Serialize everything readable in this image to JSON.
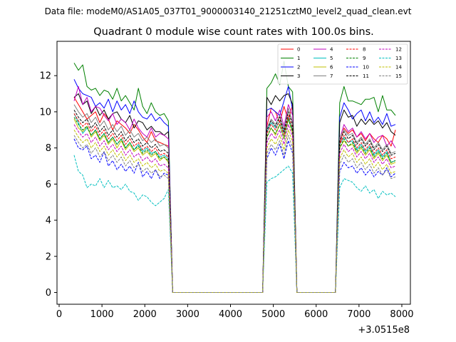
{
  "figure": {
    "supertitle": "Data file: modeM0/AS1A05_037T01_9000003140_21251cztM0_level2_quad_clean.evt"
  },
  "chart_data": {
    "type": "line",
    "title": "Quadrant 0 module wise count rates with 100.0s bins.",
    "xlabel": "",
    "ylabel": "",
    "x_offset_label": "+3.0515e8",
    "xlim": [
      -50,
      8200
    ],
    "ylim": [
      -0.65,
      13.9
    ],
    "xticks": [
      0,
      1000,
      2000,
      3000,
      4000,
      5000,
      6000,
      7000,
      8000
    ],
    "xtick_labels": [
      "0",
      "1000",
      "2000",
      "3000",
      "4000",
      "5000",
      "6000",
      "7000",
      "8000"
    ],
    "yticks": [
      0,
      2,
      4,
      6,
      8,
      10,
      12
    ],
    "ytick_labels": [
      "0",
      "2",
      "4",
      "6",
      "8",
      "10",
      "12"
    ],
    "grid": false,
    "legend_position": "top-right",
    "legend_columns": 4,
    "segments": [
      {
        "x_start": 350,
        "x_end": 2550
      },
      {
        "x_start": 4850,
        "x_end": 5450
      },
      {
        "x_start": 6550,
        "x_end": 7850
      }
    ],
    "series": [
      {
        "name": "0",
        "color": "#ff0000",
        "dash": "solid",
        "segments": [
          [
            10.8,
            10.4,
            10.0,
            9.6,
            9.8,
            10.0,
            9.4,
            9.9,
            9.6,
            9.0,
            9.5,
            9.3,
            9.1,
            8.8,
            9.3,
            9.0,
            8.6,
            8.3,
            8.9,
            8.4,
            8.3,
            8.2,
            8.1
          ],
          [
            9.2,
            10.2,
            10.0,
            9.4,
            10.3,
            9.5,
            10.4
          ],
          [
            8.2,
            9.1,
            8.8,
            9.0,
            8.6,
            8.8,
            8.4,
            8.8,
            8.5,
            8.3,
            8.7,
            8.5,
            8.1,
            9.0
          ]
        ]
      },
      {
        "name": "1",
        "color": "#008000",
        "dash": "solid",
        "segments": [
          [
            12.7,
            12.3,
            12.6,
            11.4,
            11.2,
            11.3,
            10.9,
            11.2,
            11.1,
            10.7,
            11.3,
            10.6,
            10.9,
            10.5,
            10.1,
            11.3,
            10.3,
            9.9,
            10.5,
            10.0,
            9.8,
            9.9,
            9.5
          ],
          [
            11.3,
            11.6,
            12.1,
            11.5,
            12.8,
            11.4,
            11.1
          ],
          [
            10.5,
            11.4,
            10.6,
            10.6,
            10.5,
            10.4,
            10.7,
            10.7,
            10.8,
            10.0,
            10.9,
            10.1,
            10.1,
            9.8
          ]
        ]
      },
      {
        "name": "2",
        "color": "#0000ff",
        "dash": "solid",
        "segments": [
          [
            11.8,
            11.3,
            11.0,
            10.9,
            10.8,
            10.3,
            10.5,
            10.2,
            10.7,
            10.0,
            10.6,
            10.1,
            10.4,
            9.9,
            10.6,
            10.0,
            9.7,
            9.6,
            9.9,
            9.5,
            9.7,
            9.4,
            9.2
          ],
          [
            10.1,
            10.2,
            10.0,
            9.8,
            10.6,
            11.4,
            10.1
          ],
          [
            9.7,
            10.5,
            10.1,
            9.6,
            9.9,
            10.1,
            9.5,
            10.0,
            9.4,
            9.7,
            9.3,
            9.9,
            9.2,
            9.3
          ]
        ]
      },
      {
        "name": "3",
        "color": "#000000",
        "dash": "solid",
        "segments": [
          [
            10.8,
            11.0,
            10.4,
            10.6,
            9.9,
            10.3,
            9.8,
            10.1,
            9.6,
            9.9,
            10.0,
            9.6,
            9.4,
            9.8,
            9.1,
            9.5,
            9.4,
            9.0,
            9.2,
            8.9,
            8.9,
            8.7,
            8.9
          ],
          [
            10.8,
            10.4,
            10.9,
            10.6,
            10.9,
            11.0,
            10.4
          ],
          [
            9.4,
            10.1,
            9.7,
            9.8,
            9.2,
            9.6,
            9.3,
            9.6,
            9.3,
            9.5,
            9.1,
            9.4,
            8.9,
            8.7
          ]
        ]
      },
      {
        "name": "4",
        "color": "#bf00bf",
        "dash": "solid",
        "segments": [
          [
            10.6,
            11.4,
            10.4,
            10.8,
            10.0,
            10.3,
            10.2,
            9.8,
            9.5,
            9.9,
            9.3,
            9.6,
            9.4,
            9.0,
            9.6,
            9.1,
            8.8,
            8.6,
            9.1,
            8.6,
            8.8,
            8.7,
            8.5
          ],
          [
            9.7,
            10.0,
            9.5,
            10.1,
            9.2,
            10.4,
            9.8
          ],
          [
            8.5,
            9.3,
            8.9,
            9.1,
            8.6,
            8.9,
            8.5,
            8.8,
            8.3,
            8.6,
            8.7,
            8.1,
            8.4,
            8.0
          ]
        ]
      },
      {
        "name": "5",
        "color": "#00bfbf",
        "dash": "solid",
        "segments": [
          [
            9.9,
            9.4,
            8.8,
            9.1,
            8.7,
            9.0,
            8.5,
            8.8,
            8.3,
            8.6,
            8.2,
            8.5,
            8.0,
            8.3,
            7.9,
            8.2,
            7.8,
            8.0,
            7.7,
            7.8,
            7.5,
            7.6,
            7.4
          ],
          [
            8.9,
            9.4,
            9.1,
            9.5,
            8.8,
            9.7,
            9.0
          ],
          [
            8.2,
            8.6,
            8.3,
            8.4,
            7.9,
            8.2,
            7.8,
            8.1,
            7.6,
            7.9,
            7.5,
            7.8,
            7.2,
            7.3
          ]
        ]
      },
      {
        "name": "6",
        "color": "#bfbf00",
        "dash": "solid",
        "segments": [
          [
            9.6,
            9.1,
            8.9,
            9.2,
            8.6,
            8.9,
            8.4,
            8.7,
            8.2,
            8.5,
            8.0,
            8.4,
            7.9,
            8.2,
            7.8,
            8.0,
            7.6,
            7.8,
            7.5,
            7.7,
            7.3,
            7.5,
            7.2
          ],
          [
            8.6,
            9.1,
            8.7,
            9.3,
            8.5,
            9.6,
            8.8
          ],
          [
            8.0,
            8.4,
            8.1,
            8.2,
            7.7,
            8.0,
            7.6,
            7.9,
            7.4,
            7.7,
            7.3,
            7.6,
            7.1,
            7.2
          ]
        ]
      },
      {
        "name": "7",
        "color": "#808080",
        "dash": "solid",
        "segments": [
          [
            10.4,
            10.0,
            9.7,
            9.9,
            9.4,
            9.7,
            9.2,
            9.5,
            9.0,
            9.3,
            8.9,
            9.2,
            8.7,
            9.0,
            8.6,
            8.8,
            8.4,
            8.6,
            8.3,
            8.5,
            8.1,
            8.2,
            8.0
          ],
          [
            9.1,
            9.6,
            9.3,
            9.8,
            9.0,
            10.2,
            9.4
          ],
          [
            8.6,
            9.0,
            8.7,
            8.8,
            8.3,
            8.6,
            8.2,
            8.5,
            8.0,
            8.3,
            7.9,
            8.2,
            7.7,
            7.8
          ]
        ]
      },
      {
        "name": "8",
        "color": "#ff0000",
        "dash": "dashed",
        "segments": [
          [
            9.9,
            9.5,
            9.2,
            9.4,
            8.9,
            9.2,
            8.7,
            9.0,
            8.5,
            8.8,
            8.4,
            8.7,
            8.2,
            8.5,
            8.1,
            8.3,
            7.9,
            8.1,
            7.8,
            8.0,
            7.6,
            7.7,
            7.5
          ],
          [
            8.8,
            9.3,
            9.0,
            9.5,
            8.7,
            9.8,
            9.1
          ],
          [
            8.2,
            8.7,
            8.3,
            8.5,
            8.0,
            8.3,
            7.9,
            8.2,
            7.7,
            8.0,
            7.6,
            7.9,
            7.4,
            7.5
          ]
        ]
      },
      {
        "name": "9",
        "color": "#008000",
        "dash": "dashed",
        "segments": [
          [
            9.7,
            9.3,
            9.0,
            9.2,
            8.7,
            9.0,
            8.5,
            8.8,
            8.3,
            8.6,
            8.2,
            8.5,
            8.0,
            8.3,
            7.9,
            8.1,
            7.7,
            7.9,
            7.6,
            7.8,
            7.4,
            7.5,
            7.3
          ],
          [
            8.6,
            9.1,
            8.8,
            9.3,
            8.5,
            9.6,
            8.9
          ],
          [
            8.0,
            8.5,
            8.1,
            8.3,
            7.8,
            8.1,
            7.7,
            8.0,
            7.5,
            7.8,
            7.4,
            7.7,
            7.2,
            7.3
          ]
        ]
      },
      {
        "name": "10",
        "color": "#0000ff",
        "dash": "dashed",
        "segments": [
          [
            8.5,
            8.0,
            7.9,
            8.1,
            7.4,
            7.6,
            7.2,
            7.8,
            7.0,
            7.3,
            6.8,
            7.1,
            6.7,
            7.0,
            6.6,
            7.2,
            6.4,
            6.7,
            6.3,
            6.8,
            6.3,
            6.6,
            6.5
          ],
          [
            7.4,
            8.0,
            7.6,
            8.2,
            7.4,
            8.4,
            7.7
          ],
          [
            6.7,
            7.2,
            6.9,
            7.0,
            6.6,
            6.9,
            6.5,
            6.8,
            6.4,
            6.7,
            6.5,
            6.9,
            6.4,
            6.6
          ]
        ]
      },
      {
        "name": "11",
        "color": "#000000",
        "dash": "dashed",
        "segments": [
          [
            10.1,
            9.7,
            9.4,
            9.6,
            9.1,
            9.4,
            8.9,
            9.2,
            8.7,
            9.0,
            8.6,
            8.9,
            8.4,
            8.7,
            8.3,
            8.5,
            8.1,
            8.3,
            8.0,
            8.2,
            7.8,
            7.9,
            7.7
          ],
          [
            9.0,
            9.5,
            9.2,
            9.7,
            8.9,
            10.0,
            9.3
          ],
          [
            8.4,
            8.9,
            8.5,
            8.7,
            8.2,
            8.5,
            8.1,
            8.4,
            7.9,
            8.2,
            7.8,
            8.1,
            7.6,
            7.7
          ]
        ]
      },
      {
        "name": "12",
        "color": "#bf00bf",
        "dash": "dashed",
        "segments": [
          [
            9.3,
            8.9,
            8.6,
            8.8,
            8.3,
            8.6,
            8.1,
            8.4,
            7.9,
            8.2,
            7.8,
            8.1,
            7.6,
            7.9,
            7.5,
            7.7,
            7.3,
            7.5,
            7.2,
            7.4,
            7.0,
            7.1,
            6.9
          ],
          [
            8.3,
            8.8,
            8.5,
            9.0,
            8.2,
            9.3,
            8.6
          ],
          [
            7.7,
            8.2,
            7.8,
            8.0,
            7.5,
            7.8,
            7.4,
            7.7,
            7.2,
            7.5,
            7.1,
            7.4,
            6.9,
            7.0
          ]
        ]
      },
      {
        "name": "13",
        "color": "#00bfbf",
        "dash": "dashed",
        "segments": [
          [
            7.6,
            6.7,
            6.5,
            5.8,
            6.0,
            5.9,
            6.3,
            5.8,
            6.2,
            5.8,
            5.9,
            5.7,
            6.0,
            5.6,
            5.5,
            5.1,
            5.4,
            5.3,
            5.0,
            4.8,
            5.0,
            5.2,
            5.7
          ],
          [
            6.1,
            6.3,
            6.4,
            6.6,
            6.8,
            7.0,
            6.6
          ],
          [
            5.8,
            6.3,
            6.2,
            6.1,
            5.8,
            5.6,
            5.9,
            5.5,
            5.7,
            5.2,
            5.6,
            5.4,
            5.5,
            5.3
          ]
        ]
      },
      {
        "name": "14",
        "color": "#bfbf00",
        "dash": "dashed",
        "segments": [
          [
            9.0,
            8.6,
            8.3,
            8.5,
            8.0,
            8.3,
            7.8,
            8.1,
            7.6,
            7.9,
            7.5,
            7.8,
            7.3,
            7.6,
            7.2,
            7.4,
            7.0,
            7.2,
            6.9,
            7.1,
            6.7,
            6.8,
            6.6
          ],
          [
            8.0,
            8.5,
            8.2,
            8.7,
            7.9,
            9.0,
            8.3
          ],
          [
            7.4,
            7.9,
            7.5,
            7.7,
            7.2,
            7.5,
            7.1,
            7.4,
            6.9,
            7.2,
            6.8,
            7.1,
            6.6,
            6.7
          ]
        ]
      },
      {
        "name": "15",
        "color": "#808080",
        "dash": "dashed",
        "segments": [
          [
            8.7,
            8.3,
            8.0,
            8.2,
            7.7,
            8.0,
            7.5,
            7.8,
            7.3,
            7.6,
            7.2,
            7.5,
            7.0,
            7.3,
            6.9,
            7.1,
            6.7,
            6.9,
            6.6,
            6.8,
            6.4,
            6.5,
            6.3
          ],
          [
            7.7,
            8.2,
            7.9,
            8.4,
            7.6,
            8.7,
            8.0
          ],
          [
            7.1,
            7.6,
            7.2,
            7.4,
            6.9,
            7.2,
            6.8,
            7.1,
            6.6,
            6.9,
            6.5,
            6.8,
            6.3,
            6.4
          ]
        ]
      }
    ]
  }
}
